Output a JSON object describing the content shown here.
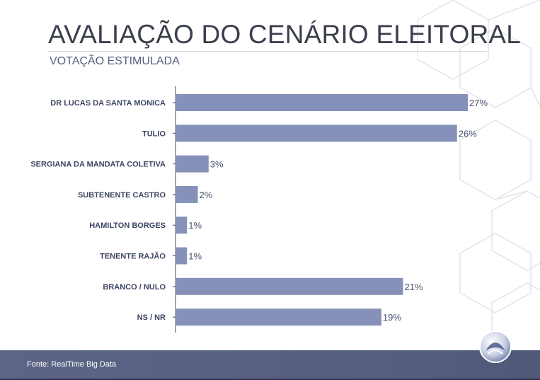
{
  "header": {
    "title": "AVALIAÇÃO DO CENÁRIO ELEITORAL",
    "subtitle": "VOTAÇÃO ESTIMULADA"
  },
  "footer": {
    "source": "Fonte: RealTime Big Data"
  },
  "colors": {
    "bar": "#8591b8",
    "label": "#3d4563",
    "value_label": "#4a5270",
    "footer_bar": "#5a6384"
  },
  "chart_data": {
    "type": "bar",
    "orientation": "horizontal",
    "title": "AVALIAÇÃO DO CENÁRIO ELEITORAL",
    "subtitle": "VOTAÇÃO ESTIMULADA",
    "categories": [
      "DR LUCAS DA SANTA MONICA",
      "TULIO",
      "SERGIANA DA MANDATA COLETIVA",
      "SUBTENENTE CASTRO",
      "HAMILTON BORGES",
      "TENENTE RAJÃO",
      "BRANCO / NULO",
      "NS / NR"
    ],
    "values": [
      27,
      26,
      3,
      2,
      1,
      1,
      21,
      19
    ],
    "data_labels": [
      "27%",
      "26%",
      "3%",
      "2%",
      "1%",
      "1%",
      "21%",
      "19%"
    ],
    "unit": "%",
    "xlim": [
      0,
      27
    ],
    "grid": false,
    "legend": "none"
  }
}
